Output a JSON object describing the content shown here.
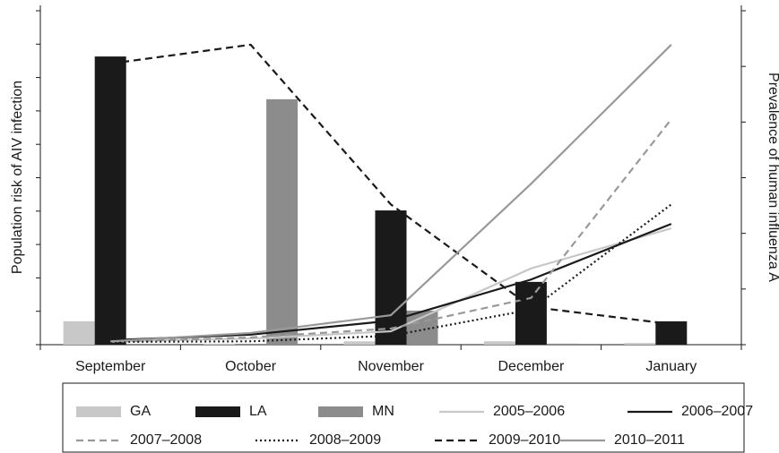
{
  "chart_data": {
    "type": "bar-line",
    "ylabel": "Population risk of AIV infection",
    "y2label": "Prevalence of human influenza A",
    "categories": [
      "September",
      "October",
      "November",
      "December",
      "January"
    ],
    "ylim": [
      0,
      10
    ],
    "yticks": [
      0,
      1,
      2,
      3,
      4,
      5,
      6,
      7,
      8,
      9,
      10
    ],
    "y2lim": [
      0,
      6
    ],
    "y2ticks": [
      0,
      1,
      2,
      3,
      4,
      5,
      6
    ],
    "series": [
      {
        "name": "GA",
        "type": "bar",
        "color": "#c8c8c8",
        "values": [
          0.7,
          0.03,
          0.1,
          0.1,
          0.05
        ]
      },
      {
        "name": "LA",
        "type": "bar",
        "color": "#1a1a1a",
        "values": [
          8.63,
          0,
          4.02,
          1.88,
          0.7
        ]
      },
      {
        "name": "MN",
        "type": "bar",
        "color": "#8c8c8c",
        "values": [
          0,
          7.35,
          1.02,
          0.03,
          0
        ]
      },
      {
        "name": "2005–2006",
        "type": "line",
        "axis": "y2",
        "color": "#c8c8c8",
        "dash": "solid",
        "values": [
          0.06,
          0.11,
          0.24,
          1.37,
          2.09
        ]
      },
      {
        "name": "2006–2007",
        "type": "line",
        "axis": "y2",
        "color": "#1a1a1a",
        "dash": "solid",
        "values": [
          0.08,
          0.18,
          0.43,
          1.17,
          2.17
        ]
      },
      {
        "name": "2007–2008",
        "type": "line",
        "axis": "y2",
        "color": "#999999",
        "dash": "dashed",
        "values": [
          0.05,
          0.13,
          0.29,
          0.84,
          4.05
        ]
      },
      {
        "name": "2008–2009",
        "type": "line",
        "axis": "y2",
        "color": "#1a1a1a",
        "dash": "dotted",
        "values": [
          0.05,
          0.06,
          0.16,
          0.63,
          2.52
        ]
      },
      {
        "name": "2009–2010",
        "type": "line",
        "axis": "y2",
        "color": "#1a1a1a",
        "dash": "dashed",
        "values": [
          5.05,
          5.39,
          2.52,
          0.68,
          0.37
        ]
      },
      {
        "name": "2010–2011",
        "type": "line",
        "axis": "y2",
        "color": "#999999",
        "dash": "solid",
        "values": [
          0.06,
          0.21,
          0.53,
          2.89,
          5.39
        ]
      }
    ]
  }
}
